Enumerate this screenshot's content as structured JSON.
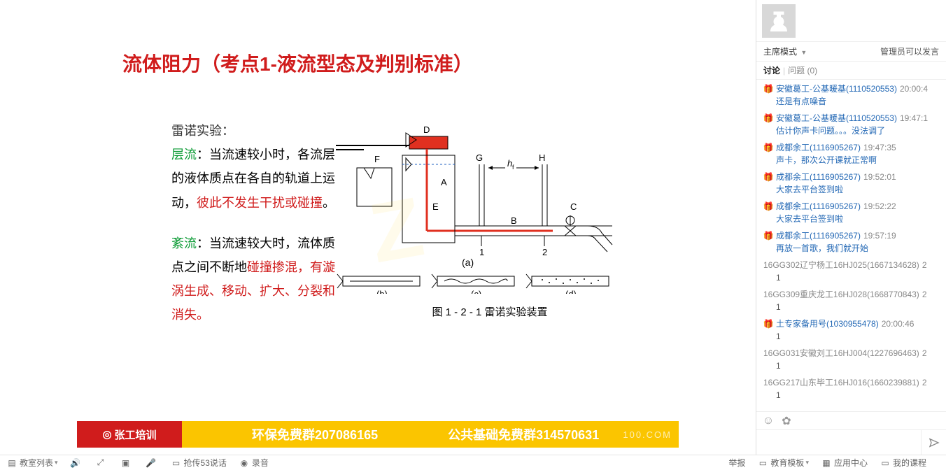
{
  "slide": {
    "title": "流体阻力（考点1-液流型态及判别标准）",
    "experiment_label": "雷诺实验：",
    "laminar_label": "层流",
    "laminar_text1": "：当流速较小时，各流层的液体质点在各自的轨道上运动，",
    "laminar_text2": "彼此不发生干扰或碰撞",
    "laminar_text3": "。",
    "turbulent_label": "紊流",
    "turbulent_text1": "：当流速较大时，流体质点之间不断地",
    "turbulent_text2": "碰撞掺混，有漩涡生成、移动、扩大、分裂和消失。",
    "figure_caption": "图 1 - 2 - 1    雷诺实验装置",
    "sub_labels": {
      "a": "(a)",
      "b": "(b)",
      "c": "(c)",
      "d": "(d)"
    },
    "diag_labels": {
      "D": "D",
      "F": "F",
      "A": "A",
      "E": "E",
      "B": "B",
      "G": "G",
      "H": "H",
      "C": "C",
      "hf": "h",
      "n1": "1",
      "n2": "2"
    }
  },
  "banner": {
    "logo_text": "张工培训",
    "group1": "环保免费群207086165",
    "group2": "公共基础免费群314570631",
    "right": "100.COM"
  },
  "side": {
    "mode": "主席模式",
    "permission": "管理员可以发言",
    "tab_discuss": "讨论",
    "tab_question": "问题  (0)"
  },
  "chat": [
    {
      "icon": true,
      "user": "安徽葛工-公基暖基(1110520553)",
      "time": "20:00:4",
      "body": "还是有点噪音",
      "blue": true
    },
    {
      "icon": true,
      "user": "安徽葛工-公基暖基(1110520553)",
      "time": "19:47:1",
      "body": "估计你声卡问题。。。没法调了",
      "blue": true
    },
    {
      "icon": true,
      "user": "成都余工(1116905267)",
      "time": "19:47:35",
      "body": "声卡，那次公开课就正常啊",
      "blue": true
    },
    {
      "icon": true,
      "user": "成都余工(1116905267)",
      "time": "19:52:01",
      "body": "大家去平台签到啦",
      "blue": true
    },
    {
      "icon": true,
      "user": "成都余工(1116905267)",
      "time": "19:52:22",
      "body": "大家去平台签到啦",
      "blue": true
    },
    {
      "icon": true,
      "user": "成都余工(1116905267)",
      "time": "19:57:19",
      "body": "再放一首歌，我们就开始",
      "blue": true
    },
    {
      "icon": false,
      "user": "16GG302辽宁杨工16HJ025(1667134628)",
      "time": "2",
      "body": "1",
      "blue": false
    },
    {
      "icon": false,
      "user": "16GG309重庆龙工16HJ028(1668770843)",
      "time": "2",
      "body": "1",
      "blue": false
    },
    {
      "icon": true,
      "user": "土专家备用号(1030955478)",
      "time": "20:00:46",
      "body": "1",
      "blue": false
    },
    {
      "icon": false,
      "user": "16GG031安徽刘工16HJ004(1227696463)",
      "time": "2",
      "body": "1",
      "blue": false
    },
    {
      "icon": false,
      "user": "16GG217山东毕工16HJ016(1660239881)",
      "time": "2",
      "body": "1",
      "blue": false
    }
  ],
  "toolbar": {
    "teacher_list": "教室列表",
    "t53": "抢传53说话",
    "record": "录音",
    "raise": "举报",
    "tpl": "教育模板",
    "app_center": "应用中心",
    "my_course": "我的课程"
  }
}
